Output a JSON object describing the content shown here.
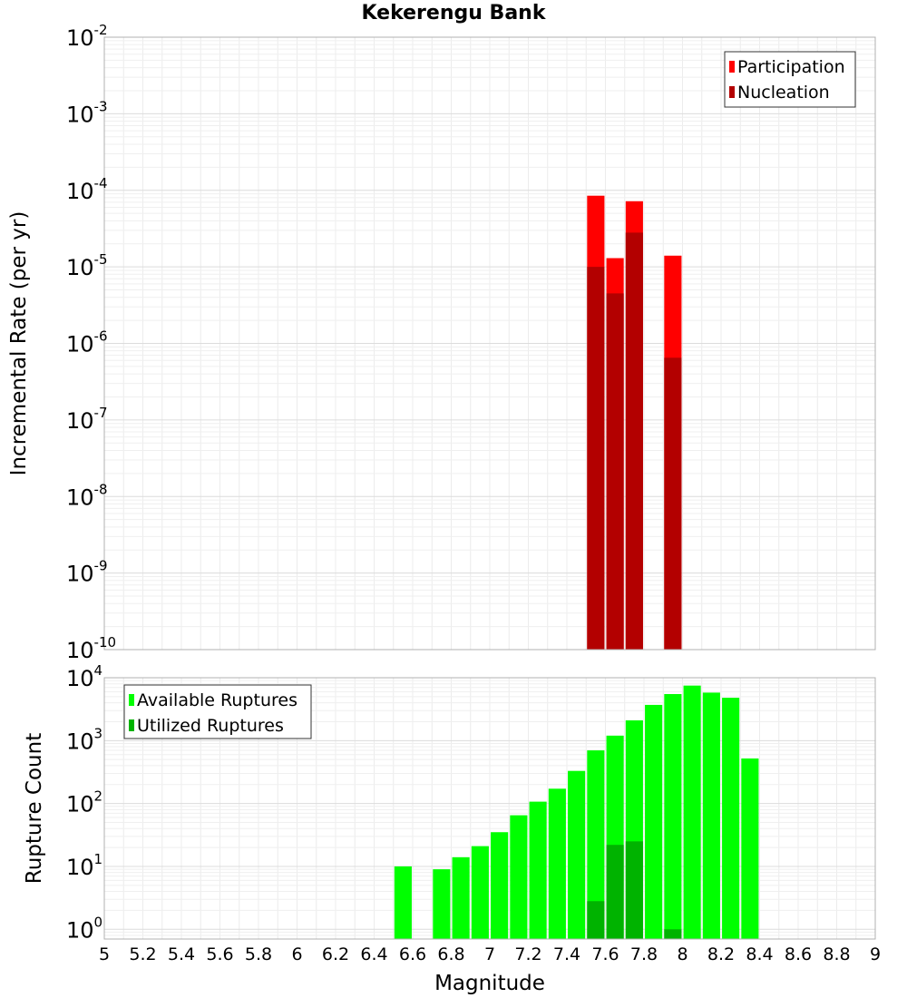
{
  "chart_data": [
    {
      "type": "bar",
      "title": "Kekerengu Bank",
      "xlabel": "",
      "ylabel": "Incremental Rate (per yr)",
      "yscale": "log",
      "ylim": [
        1e-10,
        0.01
      ],
      "xlim": [
        5,
        9
      ],
      "grid": true,
      "legend_position": "top-right",
      "bar_width": 0.09,
      "overlay": true,
      "series": [
        {
          "name": "Participation",
          "color": "#ff0000",
          "x": [
            7.55,
            7.65,
            7.75,
            7.95
          ],
          "values": [
            8.5e-05,
            1.3e-05,
            7.2e-05,
            1.4e-05
          ]
        },
        {
          "name": "Nucleation",
          "color": "#b30000",
          "x": [
            7.55,
            7.65,
            7.75,
            7.95
          ],
          "values": [
            1e-05,
            4.5e-06,
            2.8e-05,
            6.5e-07
          ]
        }
      ]
    },
    {
      "type": "bar",
      "title": "",
      "xlabel": "Magnitude",
      "ylabel": "Rupture Count",
      "yscale": "log",
      "ylim": [
        0.7,
        10000
      ],
      "xlim": [
        5,
        9
      ],
      "xticks": [
        "5",
        "5.2",
        "5.4",
        "5.6",
        "5.8",
        "6",
        "6.2",
        "6.4",
        "6.6",
        "6.8",
        "7",
        "7.2",
        "7.4",
        "7.6",
        "7.8",
        "8",
        "8.2",
        "8.4",
        "8.6",
        "8.8",
        "9"
      ],
      "grid": true,
      "legend_position": "top-left",
      "bar_width": 0.09,
      "overlay": true,
      "series": [
        {
          "name": "Available Ruptures",
          "color": "#00ff00",
          "x": [
            6.55,
            6.75,
            6.85,
            6.95,
            7.05,
            7.15,
            7.25,
            7.35,
            7.45,
            7.55,
            7.65,
            7.75,
            7.85,
            7.95,
            8.05,
            8.15,
            8.25,
            8.35
          ],
          "values": [
            10,
            9,
            14,
            21,
            35,
            65,
            107,
            172,
            330,
            700,
            1200,
            2100,
            3700,
            5500,
            7500,
            5800,
            4800,
            520
          ]
        },
        {
          "name": "Utilized Ruptures",
          "color": "#00b300",
          "x": [
            7.55,
            7.65,
            7.75,
            7.95
          ],
          "values": [
            2.8,
            22,
            25,
            1
          ]
        }
      ]
    }
  ]
}
